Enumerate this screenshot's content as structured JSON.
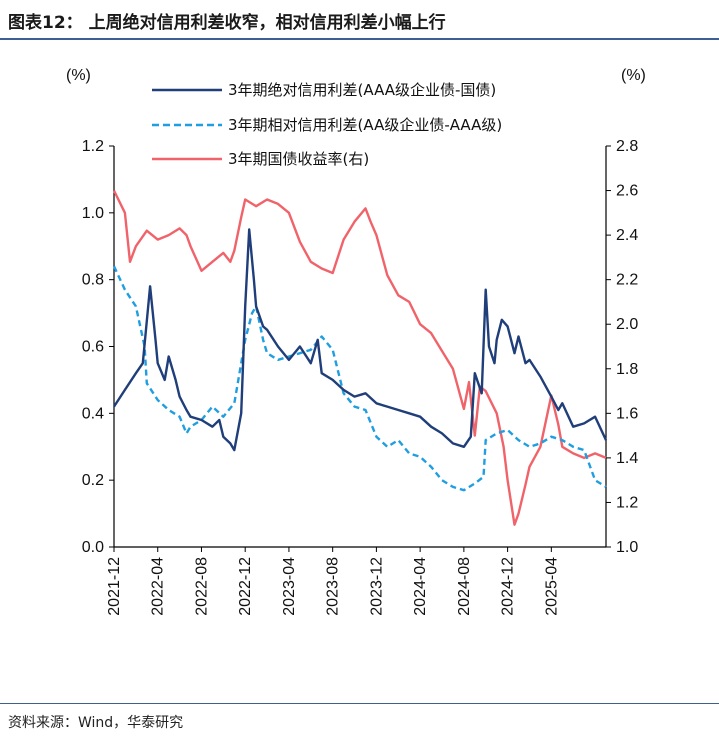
{
  "header": {
    "title": "图表12：  上周绝对信用利差收窄，相对信用利差小幅上行"
  },
  "footer": {
    "source": "资料来源：Wind，华泰研究"
  },
  "chart_data": {
    "type": "line",
    "left_unit": "(%)",
    "right_unit": "(%)",
    "ylim_left": [
      0.0,
      1.2
    ],
    "ylim_right": [
      1.0,
      2.8
    ],
    "yticks_left": [
      "0.0",
      "0.2",
      "0.4",
      "0.6",
      "0.8",
      "1.0",
      "1.2"
    ],
    "yticks_right": [
      "1.0",
      "1.2",
      "1.4",
      "1.6",
      "1.8",
      "2.0",
      "2.2",
      "2.4",
      "2.6",
      "2.8"
    ],
    "x_range": [
      "2021-12",
      "2025-09"
    ],
    "x_ticks": [
      "2021-12",
      "2022-04",
      "2022-08",
      "2022-12",
      "2023-04",
      "2023-08",
      "2023-12",
      "2024-04",
      "2024-08",
      "2024-12",
      "2025-04"
    ],
    "grid": false,
    "legend_position": "top",
    "series": [
      {
        "name": "3年期绝对信用利差(AAA级企业债-国债)",
        "axis": "left",
        "color": "#1f3e7a",
        "style": "solid",
        "points": [
          [
            "2021-12",
            0.42
          ],
          [
            "2022-01",
            0.47
          ],
          [
            "2022-02",
            0.52
          ],
          [
            "2022-02-20",
            0.55
          ],
          [
            "2022-03-10",
            0.78
          ],
          [
            "2022-03-25",
            0.62
          ],
          [
            "2022-04",
            0.55
          ],
          [
            "2022-04-20",
            0.5
          ],
          [
            "2022-05",
            0.57
          ],
          [
            "2022-05-20",
            0.5
          ],
          [
            "2022-06",
            0.45
          ],
          [
            "2022-06-20",
            0.41
          ],
          [
            "2022-07",
            0.39
          ],
          [
            "2022-08",
            0.38
          ],
          [
            "2022-09",
            0.36
          ],
          [
            "2022-09-20",
            0.38
          ],
          [
            "2022-10",
            0.33
          ],
          [
            "2022-10-20",
            0.31
          ],
          [
            "2022-11",
            0.29
          ],
          [
            "2022-11-20",
            0.4
          ],
          [
            "2022-12",
            0.72
          ],
          [
            "2022-12-12",
            0.95
          ],
          [
            "2022-12-25",
            0.8
          ],
          [
            "2023-01",
            0.72
          ],
          [
            "2023-01-20",
            0.66
          ],
          [
            "2023-02",
            0.65
          ],
          [
            "2023-03",
            0.6
          ],
          [
            "2023-04",
            0.56
          ],
          [
            "2023-05",
            0.6
          ],
          [
            "2023-06",
            0.55
          ],
          [
            "2023-06-20",
            0.62
          ],
          [
            "2023-07",
            0.52
          ],
          [
            "2023-08",
            0.5
          ],
          [
            "2023-09",
            0.47
          ],
          [
            "2023-10",
            0.45
          ],
          [
            "2023-11",
            0.46
          ],
          [
            "2023-12",
            0.43
          ],
          [
            "2024-01",
            0.42
          ],
          [
            "2024-02",
            0.41
          ],
          [
            "2024-03",
            0.4
          ],
          [
            "2024-04",
            0.39
          ],
          [
            "2024-05",
            0.36
          ],
          [
            "2024-06",
            0.34
          ],
          [
            "2024-07",
            0.31
          ],
          [
            "2024-08",
            0.3
          ],
          [
            "2024-08-20",
            0.33
          ],
          [
            "2024-09",
            0.52
          ],
          [
            "2024-09-20",
            0.46
          ],
          [
            "2024-10",
            0.77
          ],
          [
            "2024-10-10",
            0.6
          ],
          [
            "2024-10-25",
            0.55
          ],
          [
            "2024-11",
            0.62
          ],
          [
            "2024-11-15",
            0.68
          ],
          [
            "2024-12",
            0.66
          ],
          [
            "2024-12-20",
            0.58
          ],
          [
            "2025-01",
            0.63
          ],
          [
            "2025-01-20",
            0.55
          ],
          [
            "2025-02",
            0.56
          ],
          [
            "2025-03",
            0.51
          ],
          [
            "2025-04",
            0.45
          ],
          [
            "2025-04-20",
            0.41
          ],
          [
            "2025-05",
            0.43
          ],
          [
            "2025-06",
            0.36
          ],
          [
            "2025-07",
            0.37
          ],
          [
            "2025-08",
            0.39
          ],
          [
            "2025-09",
            0.32
          ]
        ]
      },
      {
        "name": "3年期相对信用利差(AA级企业债-AAA级)",
        "axis": "left",
        "color": "#1f9ee0",
        "style": "dashed",
        "points": [
          [
            "2021-12",
            0.84
          ],
          [
            "2022-01",
            0.77
          ],
          [
            "2022-02",
            0.72
          ],
          [
            "2022-02-25",
            0.6
          ],
          [
            "2022-03",
            0.49
          ],
          [
            "2022-04",
            0.44
          ],
          [
            "2022-05",
            0.41
          ],
          [
            "2022-06",
            0.39
          ],
          [
            "2022-06-20",
            0.34
          ],
          [
            "2022-07",
            0.36
          ],
          [
            "2022-08",
            0.38
          ],
          [
            "2022-09",
            0.42
          ],
          [
            "2022-10",
            0.39
          ],
          [
            "2022-11",
            0.43
          ],
          [
            "2022-11-20",
            0.55
          ],
          [
            "2022-12",
            0.62
          ],
          [
            "2022-12-20",
            0.7
          ],
          [
            "2023-01",
            0.72
          ],
          [
            "2023-01-20",
            0.62
          ],
          [
            "2023-02",
            0.58
          ],
          [
            "2023-03",
            0.56
          ],
          [
            "2023-04",
            0.57
          ],
          [
            "2023-05",
            0.58
          ],
          [
            "2023-06",
            0.59
          ],
          [
            "2023-07",
            0.63
          ],
          [
            "2023-08",
            0.59
          ],
          [
            "2023-09",
            0.46
          ],
          [
            "2023-10",
            0.42
          ],
          [
            "2023-11",
            0.41
          ],
          [
            "2023-12",
            0.33
          ],
          [
            "2024-01",
            0.3
          ],
          [
            "2024-02",
            0.32
          ],
          [
            "2024-03",
            0.28
          ],
          [
            "2024-04",
            0.27
          ],
          [
            "2024-05",
            0.24
          ],
          [
            "2024-06",
            0.2
          ],
          [
            "2024-07",
            0.18
          ],
          [
            "2024-08",
            0.17
          ],
          [
            "2024-09",
            0.19
          ],
          [
            "2024-09-25",
            0.21
          ],
          [
            "2024-10",
            0.32
          ],
          [
            "2024-11",
            0.34
          ],
          [
            "2024-12",
            0.35
          ],
          [
            "2025-01",
            0.32
          ],
          [
            "2025-02",
            0.3
          ],
          [
            "2025-03",
            0.31
          ],
          [
            "2025-04",
            0.33
          ],
          [
            "2025-05",
            0.32
          ],
          [
            "2025-06",
            0.3
          ],
          [
            "2025-07",
            0.29
          ],
          [
            "2025-08",
            0.2
          ],
          [
            "2025-09",
            0.18
          ]
        ]
      },
      {
        "name": "3年期国债收益率(右)",
        "axis": "right",
        "color": "#f0636a",
        "style": "solid",
        "points": [
          [
            "2021-12",
            2.6
          ],
          [
            "2022-01",
            2.5
          ],
          [
            "2022-01-15",
            2.28
          ],
          [
            "2022-02",
            2.35
          ],
          [
            "2022-03",
            2.42
          ],
          [
            "2022-04",
            2.38
          ],
          [
            "2022-05",
            2.4
          ],
          [
            "2022-06",
            2.43
          ],
          [
            "2022-06-20",
            2.4
          ],
          [
            "2022-07",
            2.35
          ],
          [
            "2022-08",
            2.24
          ],
          [
            "2022-09",
            2.28
          ],
          [
            "2022-10",
            2.32
          ],
          [
            "2022-10-20",
            2.28
          ],
          [
            "2022-11",
            2.33
          ],
          [
            "2022-11-20",
            2.48
          ],
          [
            "2022-12",
            2.56
          ],
          [
            "2023-01",
            2.53
          ],
          [
            "2023-02",
            2.56
          ],
          [
            "2023-03",
            2.54
          ],
          [
            "2023-04",
            2.5
          ],
          [
            "2023-05",
            2.37
          ],
          [
            "2023-06",
            2.28
          ],
          [
            "2023-07",
            2.25
          ],
          [
            "2023-08",
            2.23
          ],
          [
            "2023-09",
            2.38
          ],
          [
            "2023-10",
            2.46
          ],
          [
            "2023-11",
            2.52
          ],
          [
            "2023-11-15",
            2.46
          ],
          [
            "2023-12",
            2.4
          ],
          [
            "2024-01",
            2.22
          ],
          [
            "2024-02",
            2.13
          ],
          [
            "2024-03",
            2.1
          ],
          [
            "2024-04",
            2.0
          ],
          [
            "2024-05",
            1.96
          ],
          [
            "2024-06",
            1.88
          ],
          [
            "2024-07",
            1.8
          ],
          [
            "2024-08",
            1.62
          ],
          [
            "2024-08-15",
            1.74
          ],
          [
            "2024-09",
            1.5
          ],
          [
            "2024-09-15",
            1.72
          ],
          [
            "2024-10",
            1.7
          ],
          [
            "2024-11",
            1.6
          ],
          [
            "2024-11-20",
            1.45
          ],
          [
            "2024-12",
            1.3
          ],
          [
            "2024-12-20",
            1.1
          ],
          [
            "2025-01",
            1.15
          ],
          [
            "2025-01-20",
            1.28
          ],
          [
            "2025-02",
            1.36
          ],
          [
            "2025-03",
            1.45
          ],
          [
            "2025-04",
            1.68
          ],
          [
            "2025-04-20",
            1.55
          ],
          [
            "2025-05",
            1.45
          ],
          [
            "2025-06",
            1.42
          ],
          [
            "2025-07",
            1.4
          ],
          [
            "2025-08",
            1.42
          ],
          [
            "2025-09",
            1.4
          ]
        ]
      }
    ]
  }
}
